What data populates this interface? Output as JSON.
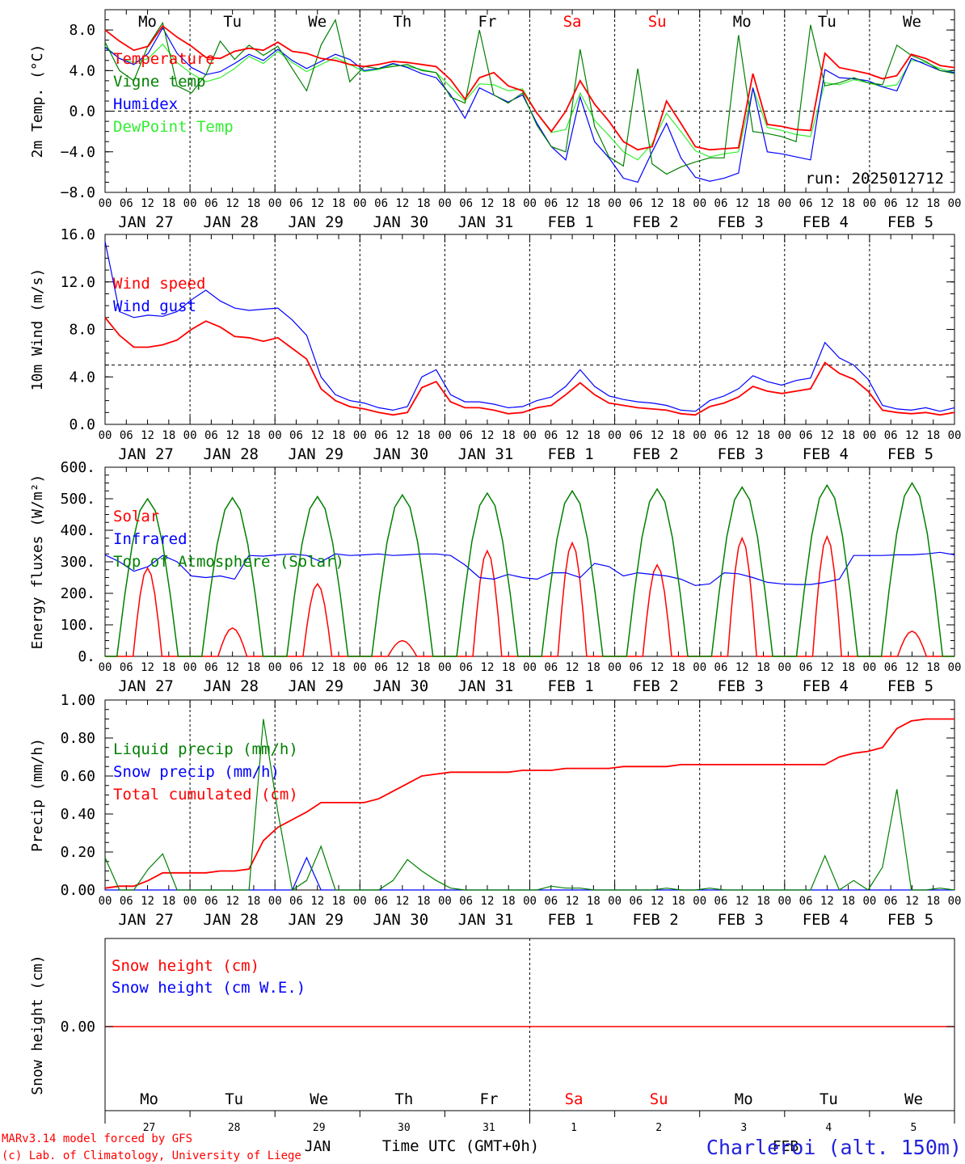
{
  "days": [
    "Mo",
    "Tu",
    "We",
    "Th",
    "Fr",
    "Sa",
    "Su",
    "Mo",
    "Tu",
    "We"
  ],
  "weekend_days": [
    "Sa",
    "Su"
  ],
  "date_labels": [
    "JAN 27",
    "JAN 28",
    "JAN 29",
    "JAN 30",
    "JAN 31",
    "FEB  1",
    "FEB  2",
    "FEB  3",
    "FEB  4",
    "FEB  5"
  ],
  "hour_ticks": [
    "00",
    "06",
    "12",
    "18"
  ],
  "bottom": {
    "day_numbers": [
      "27",
      "28",
      "29",
      "30",
      "31",
      "1",
      "2",
      "3",
      "4",
      "5"
    ],
    "month_jan": "JAN",
    "month_feb": "FEB",
    "time_label": "Time UTC (GMT+0h)",
    "credit_line1": "MARv3.14 model forced by GFS",
    "credit_line2": "(c) Lab. of Climatology, University of Liege",
    "station": "Charleroi (alt. 150m)"
  },
  "colors": {
    "red": "#ff0000",
    "green": "#008000",
    "blue": "#0000ff",
    "lightgreen": "#33ee33",
    "station": "#2222dd"
  },
  "chart_data": [
    {
      "type": "line",
      "ylabel": "2m Temp. (°C)",
      "ylim": [
        -8,
        10
      ],
      "yticks": [
        "8.0",
        "4.0",
        "0.0",
        "−4.0",
        "−8.0"
      ],
      "ytick_values": [
        8,
        4,
        0,
        -4,
        -8
      ],
      "reference_line": 0,
      "run_label": "run: 2025012712",
      "x_hours_start": 0,
      "x_hours_step": 6,
      "series": [
        {
          "name": "Temperature",
          "color": "red",
          "values": [
            8.0,
            6.9,
            6.0,
            6.4,
            8.4,
            7.3,
            6.4,
            5.3,
            5.2,
            5.9,
            6.2,
            6.0,
            6.8,
            5.9,
            5.7,
            5.2,
            5.0,
            4.6,
            4.4,
            4.6,
            4.9,
            4.8,
            4.6,
            4.4,
            3.1,
            1.2,
            3.3,
            3.8,
            2.5,
            2.0,
            -0.2,
            -2.0,
            0.0,
            3.0,
            0.7,
            -1.0,
            -3.0,
            -3.8,
            -3.5,
            1.0,
            -1.2,
            -3.5,
            -3.8,
            -3.7,
            -3.6,
            3.7,
            -1.3,
            -1.5,
            -1.8,
            -1.9,
            5.7,
            4.3,
            4.0,
            3.7,
            3.2,
            3.5,
            5.6,
            5.2,
            4.5,
            4.3
          ]
        },
        {
          "name": "Vigne temp",
          "color": "green",
          "values": [
            6.8,
            4.0,
            3.0,
            6.5,
            8.7,
            2.5,
            1.8,
            3.6,
            6.9,
            5.1,
            6.5,
            5.5,
            6.4,
            4.2,
            2.0,
            6.5,
            9.0,
            2.9,
            4.4,
            4.2,
            4.4,
            4.6,
            4.0,
            3.8,
            1.4,
            0.8,
            8.0,
            1.6,
            0.8,
            1.8,
            -1.4,
            -3.5,
            -4.0,
            6.1,
            -1.5,
            -4.5,
            -5.4,
            4.2,
            -5.2,
            -6.2,
            -5.5,
            -5.0,
            -4.6,
            -4.6,
            7.5,
            -2.0,
            -2.2,
            -2.5,
            -3.0,
            8.5,
            2.5,
            2.8,
            3.3,
            2.8,
            2.6,
            6.5,
            5.5,
            4.9,
            4.0,
            3.7
          ]
        },
        {
          "name": "Humidex",
          "color": "blue",
          "values": [
            6.3,
            5.2,
            4.6,
            5.7,
            8.2,
            5.7,
            4.3,
            3.6,
            3.9,
            4.7,
            5.6,
            5.0,
            6.1,
            5.0,
            4.2,
            4.9,
            5.6,
            5.1,
            4.0,
            4.2,
            4.7,
            4.3,
            3.7,
            3.3,
            1.6,
            -0.7,
            2.3,
            1.6,
            0.9,
            1.6,
            -1.2,
            -3.5,
            -4.8,
            1.4,
            -3.0,
            -4.6,
            -6.6,
            -7.0,
            -4.0,
            -1.2,
            -4.6,
            -6.5,
            -6.9,
            -6.6,
            -6.1,
            2.3,
            -4.0,
            -4.2,
            -4.5,
            -4.8,
            4.1,
            3.3,
            3.2,
            3.0,
            2.4,
            2.0,
            5.2,
            4.6,
            4.0,
            3.8
          ]
        },
        {
          "name": "DewPoint Temp",
          "color": "lightgreen",
          "values": [
            6.4,
            5.2,
            4.8,
            5.2,
            6.6,
            4.8,
            3.7,
            2.9,
            3.3,
            4.2,
            5.4,
            4.7,
            5.9,
            4.8,
            3.9,
            4.6,
            5.3,
            4.6,
            3.9,
            4.1,
            4.6,
            4.4,
            4.1,
            3.8,
            2.4,
            1.0,
            2.7,
            2.6,
            2.0,
            2.2,
            -0.2,
            -2.1,
            -1.8,
            1.8,
            -0.9,
            -2.4,
            -4.0,
            -4.8,
            -3.2,
            -0.2,
            -2.0,
            -3.9,
            -4.5,
            -4.2,
            -4.0,
            2.3,
            -1.6,
            -1.9,
            -2.3,
            -2.5,
            2.8,
            2.6,
            3.1,
            2.8,
            2.4,
            2.6,
            5.0,
            4.8,
            4.2,
            3.8
          ]
        }
      ]
    },
    {
      "type": "line",
      "ylabel": "10m Wind (m/s)",
      "ylim": [
        0,
        16
      ],
      "yticks": [
        "16.0",
        "12.0",
        "8.0",
        "4.0",
        "0.0"
      ],
      "ytick_values": [
        16,
        12,
        8,
        4,
        0
      ],
      "reference_line": 5,
      "x_hours_start": 0,
      "x_hours_step": 6,
      "series": [
        {
          "name": "Wind speed",
          "color": "red",
          "values": [
            9.0,
            7.5,
            6.5,
            6.5,
            6.7,
            7.1,
            8.0,
            8.7,
            8.2,
            7.4,
            7.3,
            7.0,
            7.3,
            6.4,
            5.5,
            3.0,
            2.0,
            1.5,
            1.3,
            1.0,
            0.8,
            1.0,
            3.1,
            3.6,
            1.9,
            1.4,
            1.4,
            1.2,
            0.9,
            1.0,
            1.4,
            1.6,
            2.5,
            3.5,
            2.5,
            1.8,
            1.6,
            1.4,
            1.3,
            1.2,
            0.9,
            0.8,
            1.5,
            1.8,
            2.3,
            3.2,
            2.8,
            2.6,
            2.8,
            3.0,
            5.2,
            4.3,
            3.8,
            2.8,
            1.2,
            1.0,
            0.9,
            1.0,
            0.8,
            1.0
          ]
        },
        {
          "name": "Wind gust",
          "color": "blue",
          "values": [
            15.4,
            9.5,
            9.0,
            9.2,
            9.1,
            9.5,
            10.5,
            11.3,
            10.4,
            9.8,
            9.6,
            9.7,
            9.8,
            8.8,
            7.5,
            4.0,
            2.5,
            2.0,
            1.8,
            1.4,
            1.2,
            1.5,
            4.0,
            4.6,
            2.5,
            1.9,
            1.9,
            1.7,
            1.4,
            1.5,
            2.0,
            2.3,
            3.2,
            4.6,
            3.2,
            2.4,
            2.1,
            1.9,
            1.8,
            1.6,
            1.2,
            1.1,
            2.0,
            2.4,
            3.0,
            4.1,
            3.6,
            3.3,
            3.7,
            3.9,
            6.9,
            5.6,
            5.0,
            3.8,
            1.6,
            1.3,
            1.2,
            1.4,
            1.1,
            1.4
          ]
        }
      ]
    },
    {
      "type": "line",
      "ylabel": "Energy fluxes (W/m²)",
      "ylim": [
        0,
        600
      ],
      "yticks": [
        "600.",
        "500.",
        "400.",
        "300.",
        "200.",
        "100.",
        "0."
      ],
      "ytick_values": [
        600,
        500,
        400,
        300,
        200,
        100,
        0
      ],
      "series": [
        {
          "name": "Solar",
          "color": "red",
          "description": "daily peaks (W/m²) per day",
          "daily_peaks": [
            280,
            90,
            230,
            50,
            335,
            360,
            290,
            375,
            380,
            80
          ]
        },
        {
          "name": "Infrared",
          "color": "blue",
          "values": [
            322,
            300,
            270,
            285,
            320,
            300,
            255,
            250,
            255,
            245,
            320,
            318,
            322,
            325,
            320,
            300,
            325,
            320,
            322,
            325,
            320,
            322,
            325,
            325,
            320,
            290,
            250,
            245,
            260,
            250,
            245,
            265,
            265,
            250,
            295,
            285,
            255,
            265,
            260,
            255,
            245,
            225,
            230,
            265,
            262,
            250,
            235,
            230,
            228,
            228,
            235,
            245,
            320,
            320,
            320,
            322,
            322,
            325,
            330,
            322
          ]
        },
        {
          "name": "Top of Atmosphere (Solar)",
          "color": "green",
          "description": "daily peaks (W/m²) per day",
          "daily_peaks": [
            500,
            503,
            507,
            512,
            518,
            525,
            531,
            537,
            543,
            550
          ]
        }
      ]
    },
    {
      "type": "line",
      "ylabel": "Precip (mm/h)",
      "ylim": [
        0,
        1.0
      ],
      "yticks": [
        "1.00",
        "0.80",
        "0.60",
        "0.40",
        "0.20",
        "0.00"
      ],
      "ytick_values": [
        1.0,
        0.8,
        0.6,
        0.4,
        0.2,
        0.0
      ],
      "series": [
        {
          "name": "Liquid precip (mm/h)",
          "color": "green",
          "values": [
            0.17,
            0.0,
            0.0,
            0.11,
            0.19,
            0.0,
            0.0,
            0.0,
            0.0,
            0.0,
            0.0,
            0.9,
            0.41,
            0.0,
            0.05,
            0.23,
            0.0,
            0.0,
            0.0,
            0.0,
            0.05,
            0.16,
            0.1,
            0.05,
            0.01,
            0.0,
            0.0,
            0.0,
            0.0,
            0.0,
            0.0,
            0.02,
            0.01,
            0.01,
            0.0,
            0.0,
            0.0,
            0.0,
            0.0,
            0.01,
            0.0,
            0.0,
            0.01,
            0.0,
            0.0,
            0.0,
            0.0,
            0.0,
            0.0,
            0.0,
            0.18,
            0.0,
            0.05,
            0.0,
            0.12,
            0.53,
            0.0,
            0.0,
            0.01,
            0.0
          ]
        },
        {
          "name": "Snow precip (mm/h)",
          "color": "blue",
          "values": [
            0.0,
            0.0,
            0.0,
            0.0,
            0.0,
            0.0,
            0.0,
            0.0,
            0.0,
            0.0,
            0.0,
            0.0,
            0.0,
            0.0,
            0.17,
            0.0,
            0.0,
            0.0,
            0.0,
            0.0,
            0.0,
            0.0,
            0.0,
            0.0,
            0.0,
            0.0,
            0.0,
            0.0,
            0.0,
            0.0,
            0.0,
            0.0,
            0.0,
            0.0,
            0.0,
            0.0,
            0.0,
            0.0,
            0.0,
            0.0,
            0.0,
            0.0,
            0.0,
            0.0,
            0.0,
            0.0,
            0.0,
            0.0,
            0.0,
            0.0,
            0.0,
            0.0,
            0.0,
            0.0,
            0.0,
            0.0,
            0.0,
            0.0,
            0.0,
            0.0
          ]
        },
        {
          "name": "Total cumulated (cm)",
          "color": "red",
          "values": [
            0.01,
            0.02,
            0.02,
            0.05,
            0.09,
            0.09,
            0.09,
            0.09,
            0.1,
            0.1,
            0.11,
            0.26,
            0.33,
            0.37,
            0.41,
            0.46,
            0.46,
            0.46,
            0.46,
            0.48,
            0.52,
            0.56,
            0.6,
            0.61,
            0.62,
            0.62,
            0.62,
            0.62,
            0.62,
            0.63,
            0.63,
            0.63,
            0.64,
            0.64,
            0.64,
            0.64,
            0.65,
            0.65,
            0.65,
            0.65,
            0.66,
            0.66,
            0.66,
            0.66,
            0.66,
            0.66,
            0.66,
            0.66,
            0.66,
            0.66,
            0.66,
            0.7,
            0.72,
            0.73,
            0.75,
            0.85,
            0.89,
            0.9,
            0.9,
            0.9
          ]
        }
      ]
    },
    {
      "type": "line",
      "ylabel": "Snow height (cm)",
      "yticks": [
        "0.00"
      ],
      "ytick_values": [
        0
      ],
      "series": [
        {
          "name": "Snow height (cm)",
          "color": "red",
          "values": [
            0.0,
            0.0
          ]
        },
        {
          "name": "Snow height (cm W.E.)",
          "color": "blue",
          "values": [
            0.0,
            0.0
          ]
        }
      ]
    }
  ]
}
